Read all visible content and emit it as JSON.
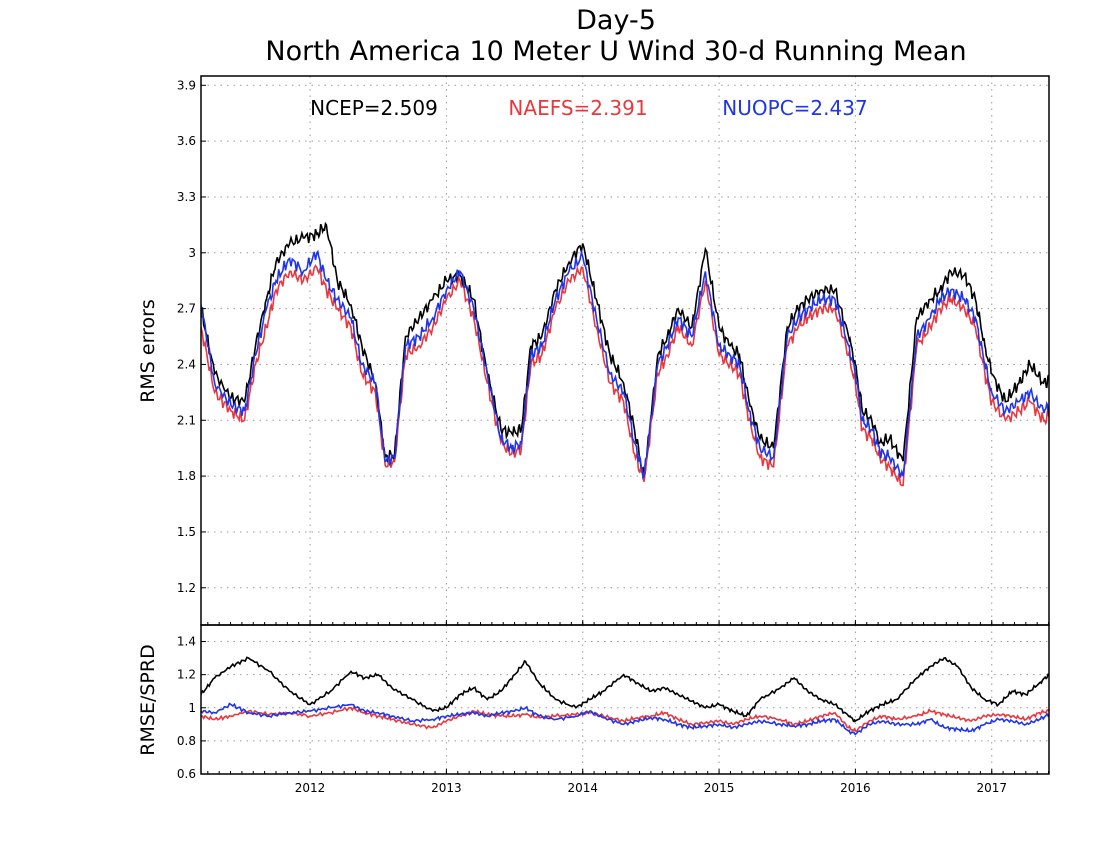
{
  "title_line1": "Day-5",
  "title_line2": "North America 10 Meter U Wind 30-d Running Mean",
  "colors": {
    "ncep": "#000000",
    "naefs": "#e8383d",
    "nuopc": "#2035e6",
    "grid": "#9a9a9a"
  },
  "chart_data": [
    {
      "type": "line",
      "ylabel": "RMS errors",
      "ylim": [
        1.0,
        3.95
      ],
      "yticks": [
        "1.2",
        "1.5",
        "1.8",
        "2.1",
        "2.4",
        "2.7",
        "3",
        "3.3",
        "3.6",
        "3.9"
      ],
      "xlim": [
        2011.2,
        2017.42
      ],
      "xticks": [
        "2012",
        "2013",
        "2014",
        "2015",
        "2016",
        "2017"
      ],
      "grid": true,
      "stats": [
        {
          "label": "NCEP=2.509",
          "series": "NCEP"
        },
        {
          "label": "NAEFS=2.391",
          "series": "NAEFS"
        },
        {
          "label": "NUOPC=2.437",
          "series": "NUOPC"
        }
      ],
      "series": [
        {
          "name": "NCEP",
          "x": [
            2011.2,
            2011.3,
            2011.42,
            2011.52,
            2011.6,
            2011.68,
            2011.75,
            2011.85,
            2011.95,
            2012.05,
            2012.12,
            2012.2,
            2012.3,
            2012.38,
            2012.48,
            2012.55,
            2012.62,
            2012.7,
            2012.8,
            2012.9,
            2013.0,
            2013.1,
            2013.2,
            2013.3,
            2013.4,
            2013.48,
            2013.55,
            2013.62,
            2013.7,
            2013.8,
            2013.9,
            2014.0,
            2014.1,
            2014.2,
            2014.3,
            2014.38,
            2014.45,
            2014.55,
            2014.62,
            2014.7,
            2014.8,
            2014.9,
            2015.0,
            2015.08,
            2015.15,
            2015.22,
            2015.3,
            2015.4,
            2015.5,
            2015.58,
            2015.65,
            2015.75,
            2015.85,
            2015.95,
            2016.0,
            2016.05,
            2016.12,
            2016.18,
            2016.25,
            2016.35,
            2016.45,
            2016.55,
            2016.62,
            2016.7,
            2016.8,
            2016.88,
            2016.95,
            2017.0,
            2017.1,
            2017.2,
            2017.28,
            2017.38,
            2017.42
          ],
          "values": [
            2.7,
            2.35,
            2.22,
            2.2,
            2.5,
            2.75,
            2.95,
            3.05,
            3.08,
            3.1,
            3.15,
            2.85,
            2.72,
            2.5,
            2.3,
            1.9,
            1.92,
            2.55,
            2.65,
            2.75,
            2.85,
            2.88,
            2.75,
            2.35,
            2.05,
            2.03,
            2.05,
            2.5,
            2.55,
            2.8,
            2.95,
            3.05,
            2.75,
            2.45,
            2.3,
            2.05,
            1.78,
            2.45,
            2.55,
            2.7,
            2.6,
            3.02,
            2.6,
            2.5,
            2.45,
            2.2,
            2.0,
            1.95,
            2.6,
            2.7,
            2.75,
            2.8,
            2.8,
            2.55,
            2.4,
            2.15,
            2.1,
            1.98,
            2.0,
            1.88,
            2.65,
            2.75,
            2.8,
            2.9,
            2.88,
            2.75,
            2.5,
            2.35,
            2.2,
            2.3,
            2.4,
            2.3,
            2.32
          ]
        },
        {
          "name": "NAEFS",
          "x": [
            2011.2,
            2011.3,
            2011.42,
            2011.52,
            2011.6,
            2011.68,
            2011.75,
            2011.85,
            2011.95,
            2012.05,
            2012.12,
            2012.2,
            2012.3,
            2012.38,
            2012.48,
            2012.55,
            2012.62,
            2012.7,
            2012.8,
            2012.9,
            2013.0,
            2013.1,
            2013.2,
            2013.3,
            2013.4,
            2013.48,
            2013.55,
            2013.62,
            2013.7,
            2013.8,
            2013.9,
            2014.0,
            2014.1,
            2014.2,
            2014.3,
            2014.38,
            2014.45,
            2014.55,
            2014.62,
            2014.7,
            2014.8,
            2014.9,
            2015.0,
            2015.08,
            2015.15,
            2015.22,
            2015.3,
            2015.4,
            2015.5,
            2015.58,
            2015.65,
            2015.75,
            2015.85,
            2015.95,
            2016.0,
            2016.05,
            2016.12,
            2016.18,
            2016.25,
            2016.35,
            2016.45,
            2016.55,
            2016.62,
            2016.7,
            2016.8,
            2016.88,
            2016.95,
            2017.0,
            2017.1,
            2017.2,
            2017.28,
            2017.38,
            2017.42
          ],
          "values": [
            2.6,
            2.25,
            2.15,
            2.1,
            2.4,
            2.6,
            2.8,
            2.9,
            2.85,
            2.92,
            2.8,
            2.7,
            2.6,
            2.35,
            2.25,
            1.86,
            1.88,
            2.45,
            2.5,
            2.6,
            2.75,
            2.85,
            2.65,
            2.3,
            1.98,
            1.92,
            1.95,
            2.4,
            2.45,
            2.7,
            2.85,
            2.92,
            2.6,
            2.3,
            2.2,
            1.92,
            1.77,
            2.35,
            2.45,
            2.6,
            2.5,
            2.85,
            2.45,
            2.4,
            2.35,
            2.1,
            1.9,
            1.85,
            2.5,
            2.6,
            2.65,
            2.7,
            2.7,
            2.45,
            2.3,
            2.05,
            2.0,
            1.9,
            1.85,
            1.75,
            2.5,
            2.6,
            2.7,
            2.75,
            2.7,
            2.6,
            2.35,
            2.2,
            2.1,
            2.15,
            2.2,
            2.1,
            2.12
          ]
        },
        {
          "name": "NUOPC",
          "x": [
            2011.2,
            2011.3,
            2011.42,
            2011.52,
            2011.6,
            2011.68,
            2011.75,
            2011.85,
            2011.95,
            2012.05,
            2012.12,
            2012.2,
            2012.3,
            2012.38,
            2012.48,
            2012.55,
            2012.62,
            2012.7,
            2012.8,
            2012.9,
            2013.0,
            2013.1,
            2013.2,
            2013.3,
            2013.4,
            2013.48,
            2013.55,
            2013.62,
            2013.7,
            2013.8,
            2013.9,
            2014.0,
            2014.1,
            2014.2,
            2014.3,
            2014.38,
            2014.45,
            2014.55,
            2014.62,
            2014.7,
            2014.8,
            2014.9,
            2015.0,
            2015.08,
            2015.15,
            2015.22,
            2015.3,
            2015.4,
            2015.5,
            2015.58,
            2015.65,
            2015.75,
            2015.85,
            2015.95,
            2016.0,
            2016.05,
            2016.12,
            2016.18,
            2016.25,
            2016.35,
            2016.45,
            2016.55,
            2016.62,
            2016.7,
            2016.8,
            2016.88,
            2016.95,
            2017.0,
            2017.1,
            2017.2,
            2017.28,
            2017.38,
            2017.42
          ],
          "values": [
            2.72,
            2.3,
            2.18,
            2.15,
            2.45,
            2.7,
            2.85,
            2.97,
            2.9,
            3.0,
            2.85,
            2.75,
            2.65,
            2.4,
            2.3,
            1.88,
            1.9,
            2.5,
            2.55,
            2.65,
            2.8,
            2.9,
            2.7,
            2.35,
            2.0,
            1.95,
            1.98,
            2.45,
            2.5,
            2.75,
            2.9,
            2.98,
            2.65,
            2.35,
            2.25,
            1.98,
            1.8,
            2.4,
            2.5,
            2.65,
            2.55,
            2.9,
            2.5,
            2.45,
            2.4,
            2.15,
            1.95,
            1.9,
            2.55,
            2.65,
            2.7,
            2.75,
            2.75,
            2.5,
            2.35,
            2.1,
            2.05,
            1.93,
            1.9,
            1.8,
            2.55,
            2.65,
            2.75,
            2.8,
            2.75,
            2.65,
            2.4,
            2.25,
            2.15,
            2.2,
            2.25,
            2.15,
            2.17
          ]
        }
      ]
    },
    {
      "type": "line",
      "ylabel": "RMSE/SPRD",
      "ylim": [
        0.6,
        1.5
      ],
      "yticks": [
        "0.6",
        "0.8",
        "1",
        "1.2",
        "1.4"
      ],
      "xlim": [
        2011.2,
        2017.42
      ],
      "xticks": [
        "2012",
        "2013",
        "2014",
        "2015",
        "2016",
        "2017"
      ],
      "grid": true,
      "series": [
        {
          "name": "NCEP",
          "x": [
            2011.2,
            2011.3,
            2011.42,
            2011.55,
            2011.7,
            2011.85,
            2012.0,
            2012.15,
            2012.3,
            2012.4,
            2012.5,
            2012.6,
            2012.75,
            2012.9,
            2013.0,
            2013.1,
            2013.2,
            2013.3,
            2013.4,
            2013.5,
            2013.58,
            2013.68,
            2013.8,
            2013.95,
            2014.05,
            2014.15,
            2014.3,
            2014.4,
            2014.5,
            2014.6,
            2014.7,
            2014.8,
            2014.9,
            2015.0,
            2015.1,
            2015.2,
            2015.3,
            2015.45,
            2015.55,
            2015.65,
            2015.75,
            2015.85,
            2015.95,
            2016.0,
            2016.1,
            2016.2,
            2016.3,
            2016.45,
            2016.55,
            2016.65,
            2016.75,
            2016.85,
            2016.95,
            2017.05,
            2017.15,
            2017.25,
            2017.35,
            2017.42
          ],
          "values": [
            1.08,
            1.18,
            1.25,
            1.3,
            1.22,
            1.1,
            1.02,
            1.1,
            1.22,
            1.18,
            1.2,
            1.12,
            1.05,
            0.98,
            1.0,
            1.08,
            1.12,
            1.05,
            1.1,
            1.2,
            1.28,
            1.15,
            1.05,
            1.0,
            1.05,
            1.1,
            1.2,
            1.15,
            1.1,
            1.12,
            1.08,
            1.04,
            1.0,
            1.02,
            0.98,
            0.95,
            1.05,
            1.12,
            1.18,
            1.1,
            1.05,
            1.02,
            0.95,
            0.92,
            0.98,
            1.02,
            1.05,
            1.18,
            1.25,
            1.3,
            1.25,
            1.12,
            1.05,
            1.02,
            1.1,
            1.08,
            1.15,
            1.2
          ]
        },
        {
          "name": "NAEFS",
          "x": [
            2011.2,
            2011.3,
            2011.42,
            2011.55,
            2011.7,
            2011.85,
            2012.0,
            2012.15,
            2012.3,
            2012.4,
            2012.5,
            2012.6,
            2012.75,
            2012.9,
            2013.0,
            2013.1,
            2013.2,
            2013.3,
            2013.4,
            2013.5,
            2013.58,
            2013.68,
            2013.8,
            2013.95,
            2014.05,
            2014.15,
            2014.3,
            2014.4,
            2014.5,
            2014.6,
            2014.7,
            2014.8,
            2014.9,
            2015.0,
            2015.1,
            2015.2,
            2015.3,
            2015.45,
            2015.55,
            2015.65,
            2015.75,
            2015.85,
            2015.95,
            2016.0,
            2016.1,
            2016.2,
            2016.3,
            2016.45,
            2016.55,
            2016.65,
            2016.75,
            2016.85,
            2016.95,
            2017.05,
            2017.15,
            2017.25,
            2017.35,
            2017.42
          ],
          "values": [
            0.95,
            0.93,
            0.95,
            0.98,
            0.96,
            0.97,
            0.95,
            0.97,
            1.0,
            0.97,
            0.95,
            0.93,
            0.9,
            0.88,
            0.92,
            0.95,
            0.98,
            0.96,
            0.95,
            0.95,
            0.96,
            0.94,
            0.95,
            0.96,
            0.97,
            0.95,
            0.92,
            0.94,
            0.95,
            0.97,
            0.93,
            0.9,
            0.91,
            0.92,
            0.9,
            0.93,
            0.95,
            0.93,
            0.9,
            0.92,
            0.95,
            0.97,
            0.88,
            0.86,
            0.92,
            0.95,
            0.93,
            0.95,
            0.98,
            0.96,
            0.94,
            0.92,
            0.95,
            0.96,
            0.95,
            0.93,
            0.97,
            0.98
          ]
        },
        {
          "name": "NUOPC",
          "x": [
            2011.2,
            2011.3,
            2011.42,
            2011.55,
            2011.7,
            2011.85,
            2012.0,
            2012.15,
            2012.3,
            2012.4,
            2012.5,
            2012.6,
            2012.75,
            2012.9,
            2013.0,
            2013.1,
            2013.2,
            2013.3,
            2013.4,
            2013.5,
            2013.58,
            2013.68,
            2013.8,
            2013.95,
            2014.05,
            2014.15,
            2014.3,
            2014.4,
            2014.5,
            2014.6,
            2014.7,
            2014.8,
            2014.9,
            2015.0,
            2015.1,
            2015.2,
            2015.3,
            2015.45,
            2015.55,
            2015.65,
            2015.75,
            2015.85,
            2015.95,
            2016.0,
            2016.1,
            2016.2,
            2016.3,
            2016.45,
            2016.55,
            2016.65,
            2016.75,
            2016.85,
            2016.95,
            2017.05,
            2017.15,
            2017.25,
            2017.35,
            2017.42
          ],
          "values": [
            0.98,
            0.97,
            1.02,
            0.97,
            0.95,
            0.97,
            0.98,
            1.0,
            1.02,
            0.98,
            0.97,
            0.95,
            0.92,
            0.93,
            0.95,
            0.96,
            0.97,
            0.95,
            0.97,
            0.98,
            1.0,
            0.95,
            0.93,
            0.95,
            0.98,
            0.94,
            0.9,
            0.92,
            0.94,
            0.93,
            0.9,
            0.88,
            0.89,
            0.9,
            0.88,
            0.9,
            0.92,
            0.9,
            0.89,
            0.9,
            0.92,
            0.93,
            0.86,
            0.84,
            0.9,
            0.92,
            0.9,
            0.9,
            0.93,
            0.88,
            0.87,
            0.86,
            0.9,
            0.93,
            0.92,
            0.9,
            0.93,
            0.96
          ]
        }
      ]
    }
  ]
}
